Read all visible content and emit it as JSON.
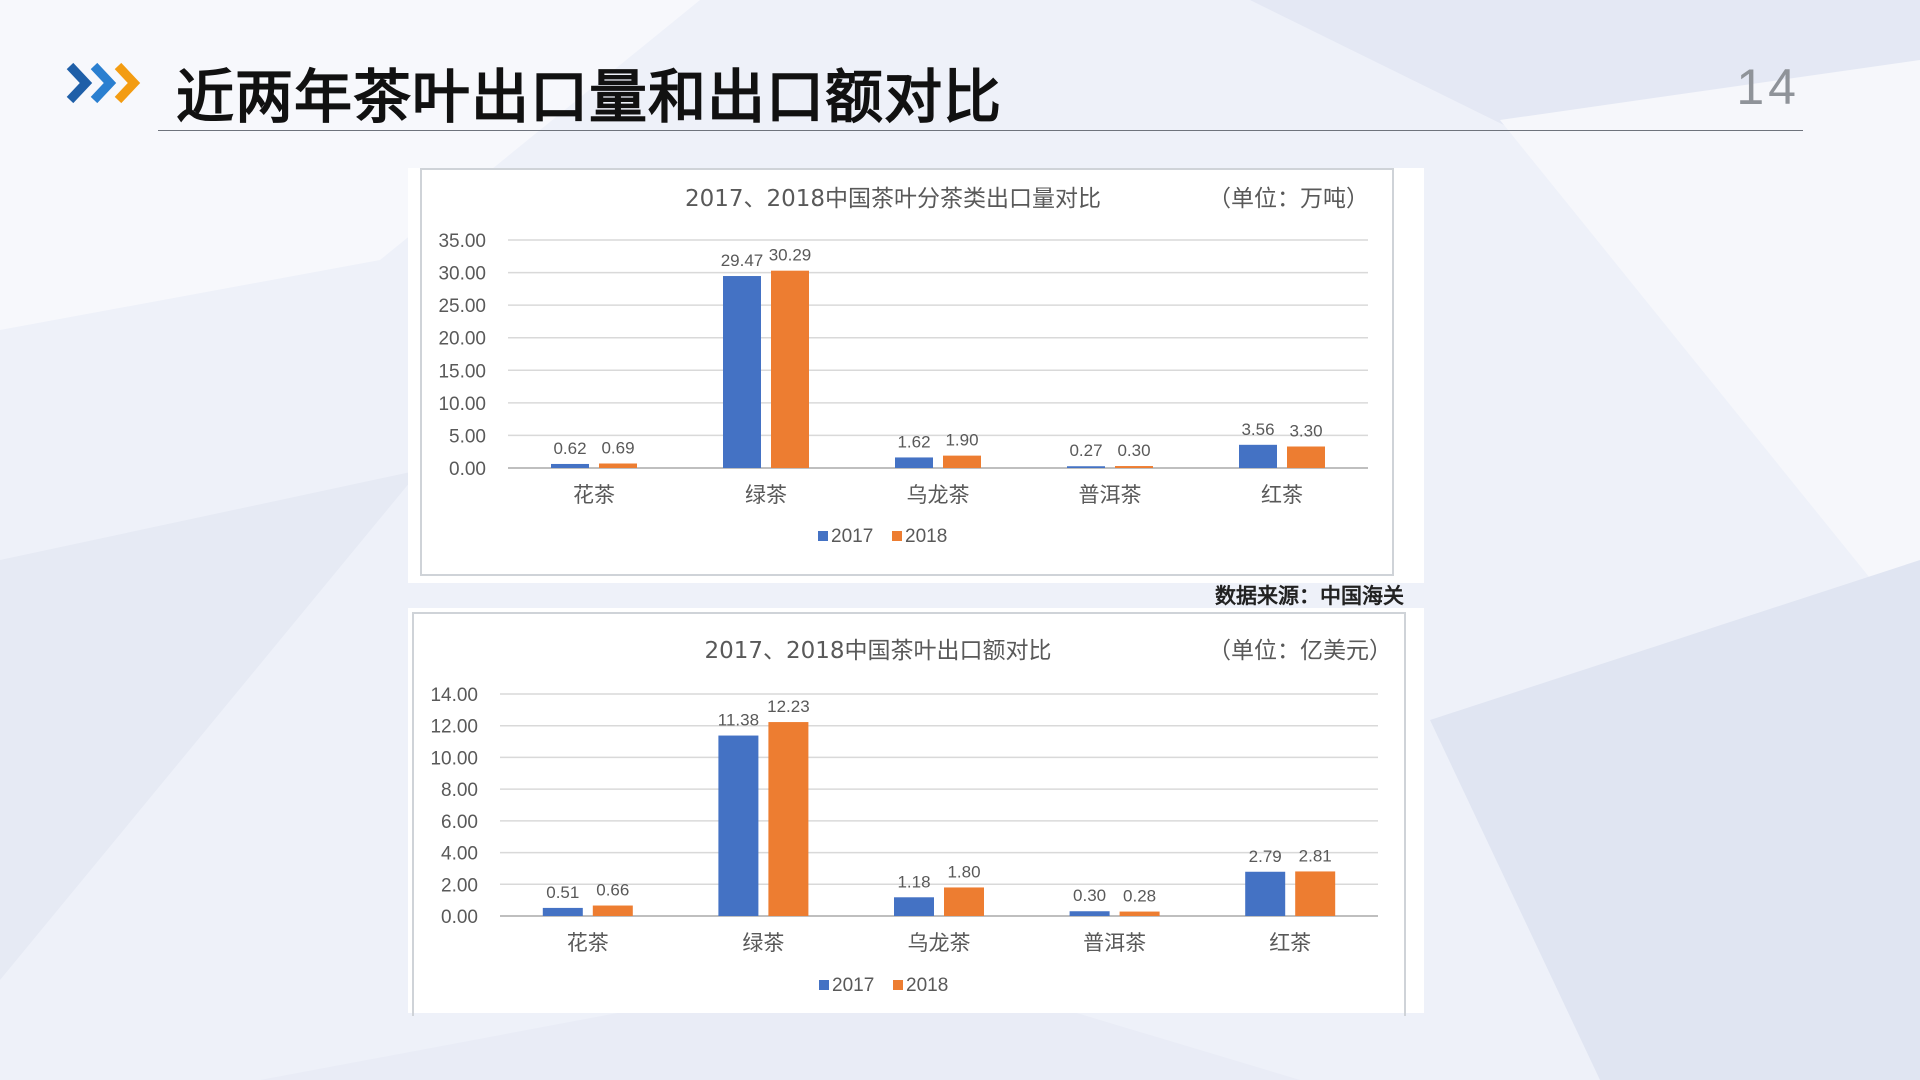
{
  "slide": {
    "title": "近两年茶叶出口量和出口额对比",
    "page_number": "14",
    "source_note": "数据来源：中国海关"
  },
  "colors": {
    "series_2017": "#4472c4",
    "series_2018": "#ed7d31",
    "arrow_blue": "#1f5fa8",
    "arrow_orange": "#f39c12"
  },
  "icons": [
    "triple-chevron-icon"
  ],
  "chart_data": [
    {
      "type": "bar",
      "title": "2017、2018中国茶叶分茶类出口量对比",
      "unit_label": "（单位：万吨）",
      "categories": [
        "花茶",
        "绿茶",
        "乌龙茶",
        "普洱茶",
        "红茶"
      ],
      "series": [
        {
          "name": "2017",
          "values": [
            0.62,
            29.47,
            1.62,
            0.27,
            3.56
          ],
          "labels": [
            "0.62",
            "29.47",
            "1.62",
            "0.27",
            "3.56"
          ]
        },
        {
          "name": "2018",
          "values": [
            0.69,
            30.29,
            1.9,
            0.3,
            3.3
          ],
          "labels": [
            "0.69",
            "30.29",
            "1.90",
            "0.30",
            "3.30"
          ]
        }
      ],
      "yticks": [
        "0.00",
        "5.00",
        "10.00",
        "15.00",
        "20.00",
        "25.00",
        "30.00",
        "35.00"
      ],
      "ylim": [
        0,
        35
      ],
      "legend": "bottom",
      "grid": true
    },
    {
      "type": "bar",
      "title": "2017、2018中国茶叶出口额对比",
      "unit_label": "（单位：亿美元）",
      "categories": [
        "花茶",
        "绿茶",
        "乌龙茶",
        "普洱茶",
        "红茶"
      ],
      "series": [
        {
          "name": "2017",
          "values": [
            0.51,
            11.38,
            1.18,
            0.3,
            2.79
          ],
          "labels": [
            "0.51",
            "11.38",
            "1.18",
            "0.30",
            "2.79"
          ]
        },
        {
          "name": "2018",
          "values": [
            0.66,
            12.23,
            1.8,
            0.28,
            2.81
          ],
          "labels": [
            "0.66",
            "12.23",
            "1.80",
            "0.28",
            "2.81"
          ]
        }
      ],
      "yticks": [
        "0.00",
        "2.00",
        "4.00",
        "6.00",
        "8.00",
        "10.00",
        "12.00",
        "14.00"
      ],
      "ylim": [
        0,
        14
      ],
      "legend": "bottom",
      "grid": true
    }
  ]
}
